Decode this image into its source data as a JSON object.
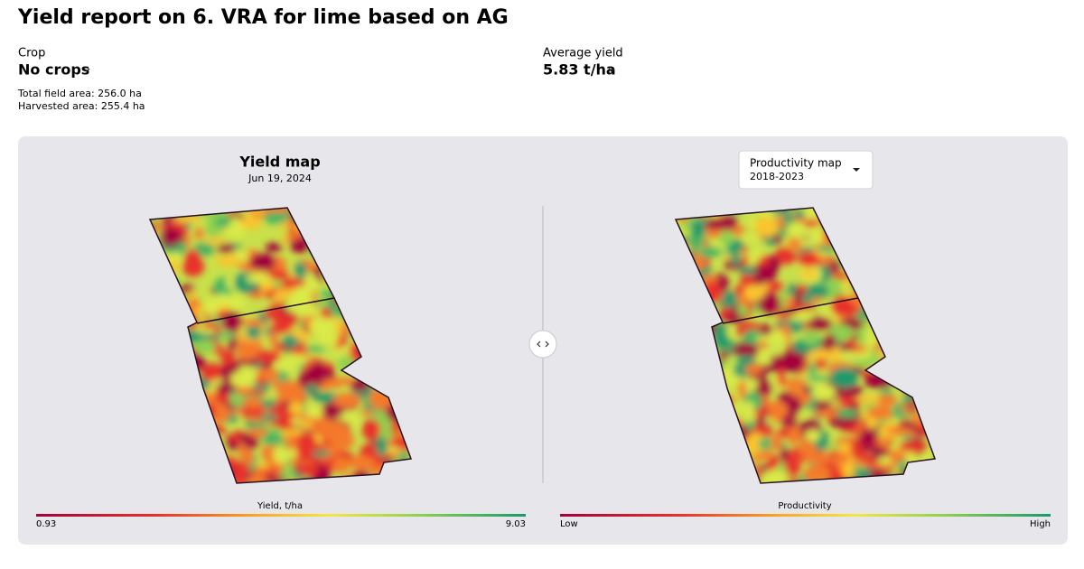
{
  "header": {
    "title": "Yield report on 6. VRA for lime based on AG"
  },
  "crop": {
    "label": "Crop",
    "value": "No crops",
    "total_area": "Total field area: 256.0 ha",
    "harvested_area": "Harvested area: 255.4 ha"
  },
  "average_yield": {
    "label": "Average yield",
    "value": "5.83 t/ha"
  },
  "left_map": {
    "title": "Yield map",
    "date": "Jun 19, 2024",
    "legend": {
      "title": "Yield, t/ha",
      "min": "0.93",
      "max": "9.03"
    }
  },
  "right_map": {
    "selector": {
      "title": "Productivity map",
      "period": "2018-2023"
    },
    "legend": {
      "title": "Productivity",
      "min": "Low",
      "max": "High"
    }
  }
}
